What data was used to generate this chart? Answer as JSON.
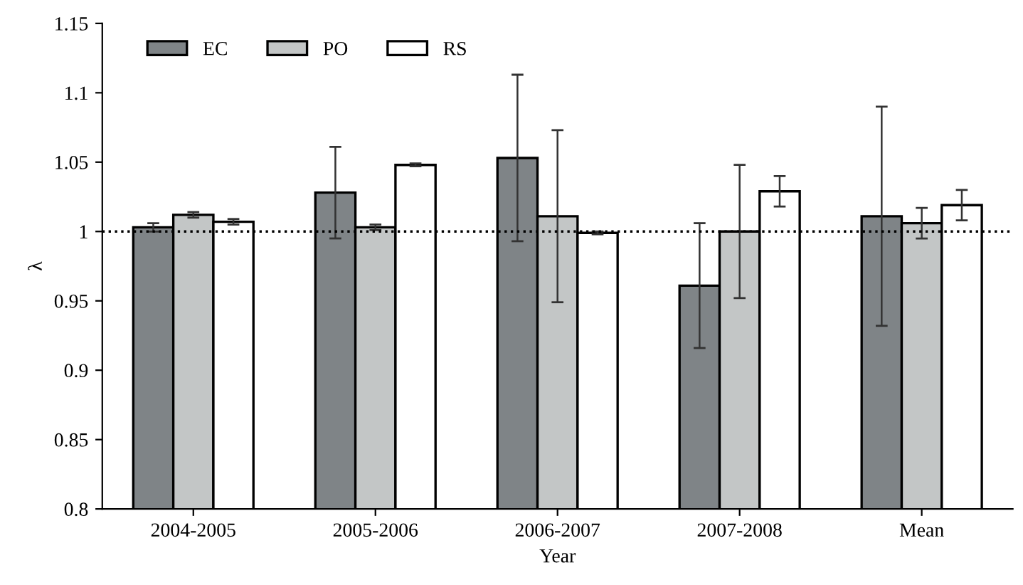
{
  "chart_data": {
    "type": "bar",
    "xlabel": "Year",
    "ylabel": "λ",
    "categories": [
      "2004-2005",
      "2005-2006",
      "2006-2007",
      "2007-2008",
      "Mean"
    ],
    "series": [
      {
        "name": "EC",
        "color": "#7f8487",
        "values": [
          1.003,
          1.028,
          1.053,
          0.961,
          1.011
        ],
        "errors": [
          0.003,
          0.033,
          0.06,
          0.045,
          0.079
        ]
      },
      {
        "name": "PO",
        "color": "#c3c6c6",
        "values": [
          1.012,
          1.003,
          1.011,
          1.0,
          1.006
        ],
        "errors": [
          0.002,
          0.002,
          0.062,
          0.048,
          0.011
        ]
      },
      {
        "name": "RS",
        "color": "#ffffff",
        "values": [
          1.007,
          1.048,
          0.999,
          1.029,
          1.019
        ],
        "errors": [
          0.002,
          0.001,
          0.001,
          0.011,
          0.011
        ]
      }
    ],
    "ylim": [
      0.8,
      1.15
    ],
    "yticks": [
      0.8,
      0.85,
      0.9,
      0.95,
      1,
      1.05,
      1.1,
      1.15
    ],
    "ref_lines": [
      {
        "axis": "y",
        "value": 1,
        "line_style": "dotted",
        "color": "#000000"
      }
    ],
    "grid": false,
    "legend": "top left"
  }
}
